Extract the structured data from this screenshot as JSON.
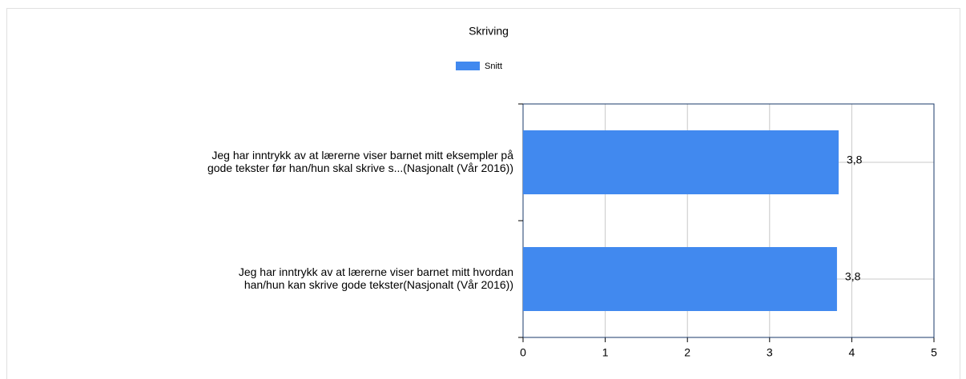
{
  "chart_data": {
    "type": "bar",
    "orientation": "horizontal",
    "title": "Skriving",
    "categories": [
      "Jeg har inntrykk av at lærerne viser barnet mitt eksempler på\ngode tekster før han/hun skal skrive s...(Nasjonalt (Vår 2016))",
      "Jeg har inntrykk av at lærerne viser barnet mitt hvordan\nhan/hun kan skrive gode tekster(Nasjonalt (Vår 2016))"
    ],
    "series": [
      {
        "name": "Snitt",
        "color": "#4189ef",
        "values": [
          3.84,
          3.82
        ],
        "value_labels": [
          "3,8",
          "3,8"
        ]
      }
    ],
    "xlim": [
      0,
      5
    ],
    "xticks": [
      0,
      1,
      2,
      3,
      4,
      5
    ],
    "grid": true
  }
}
